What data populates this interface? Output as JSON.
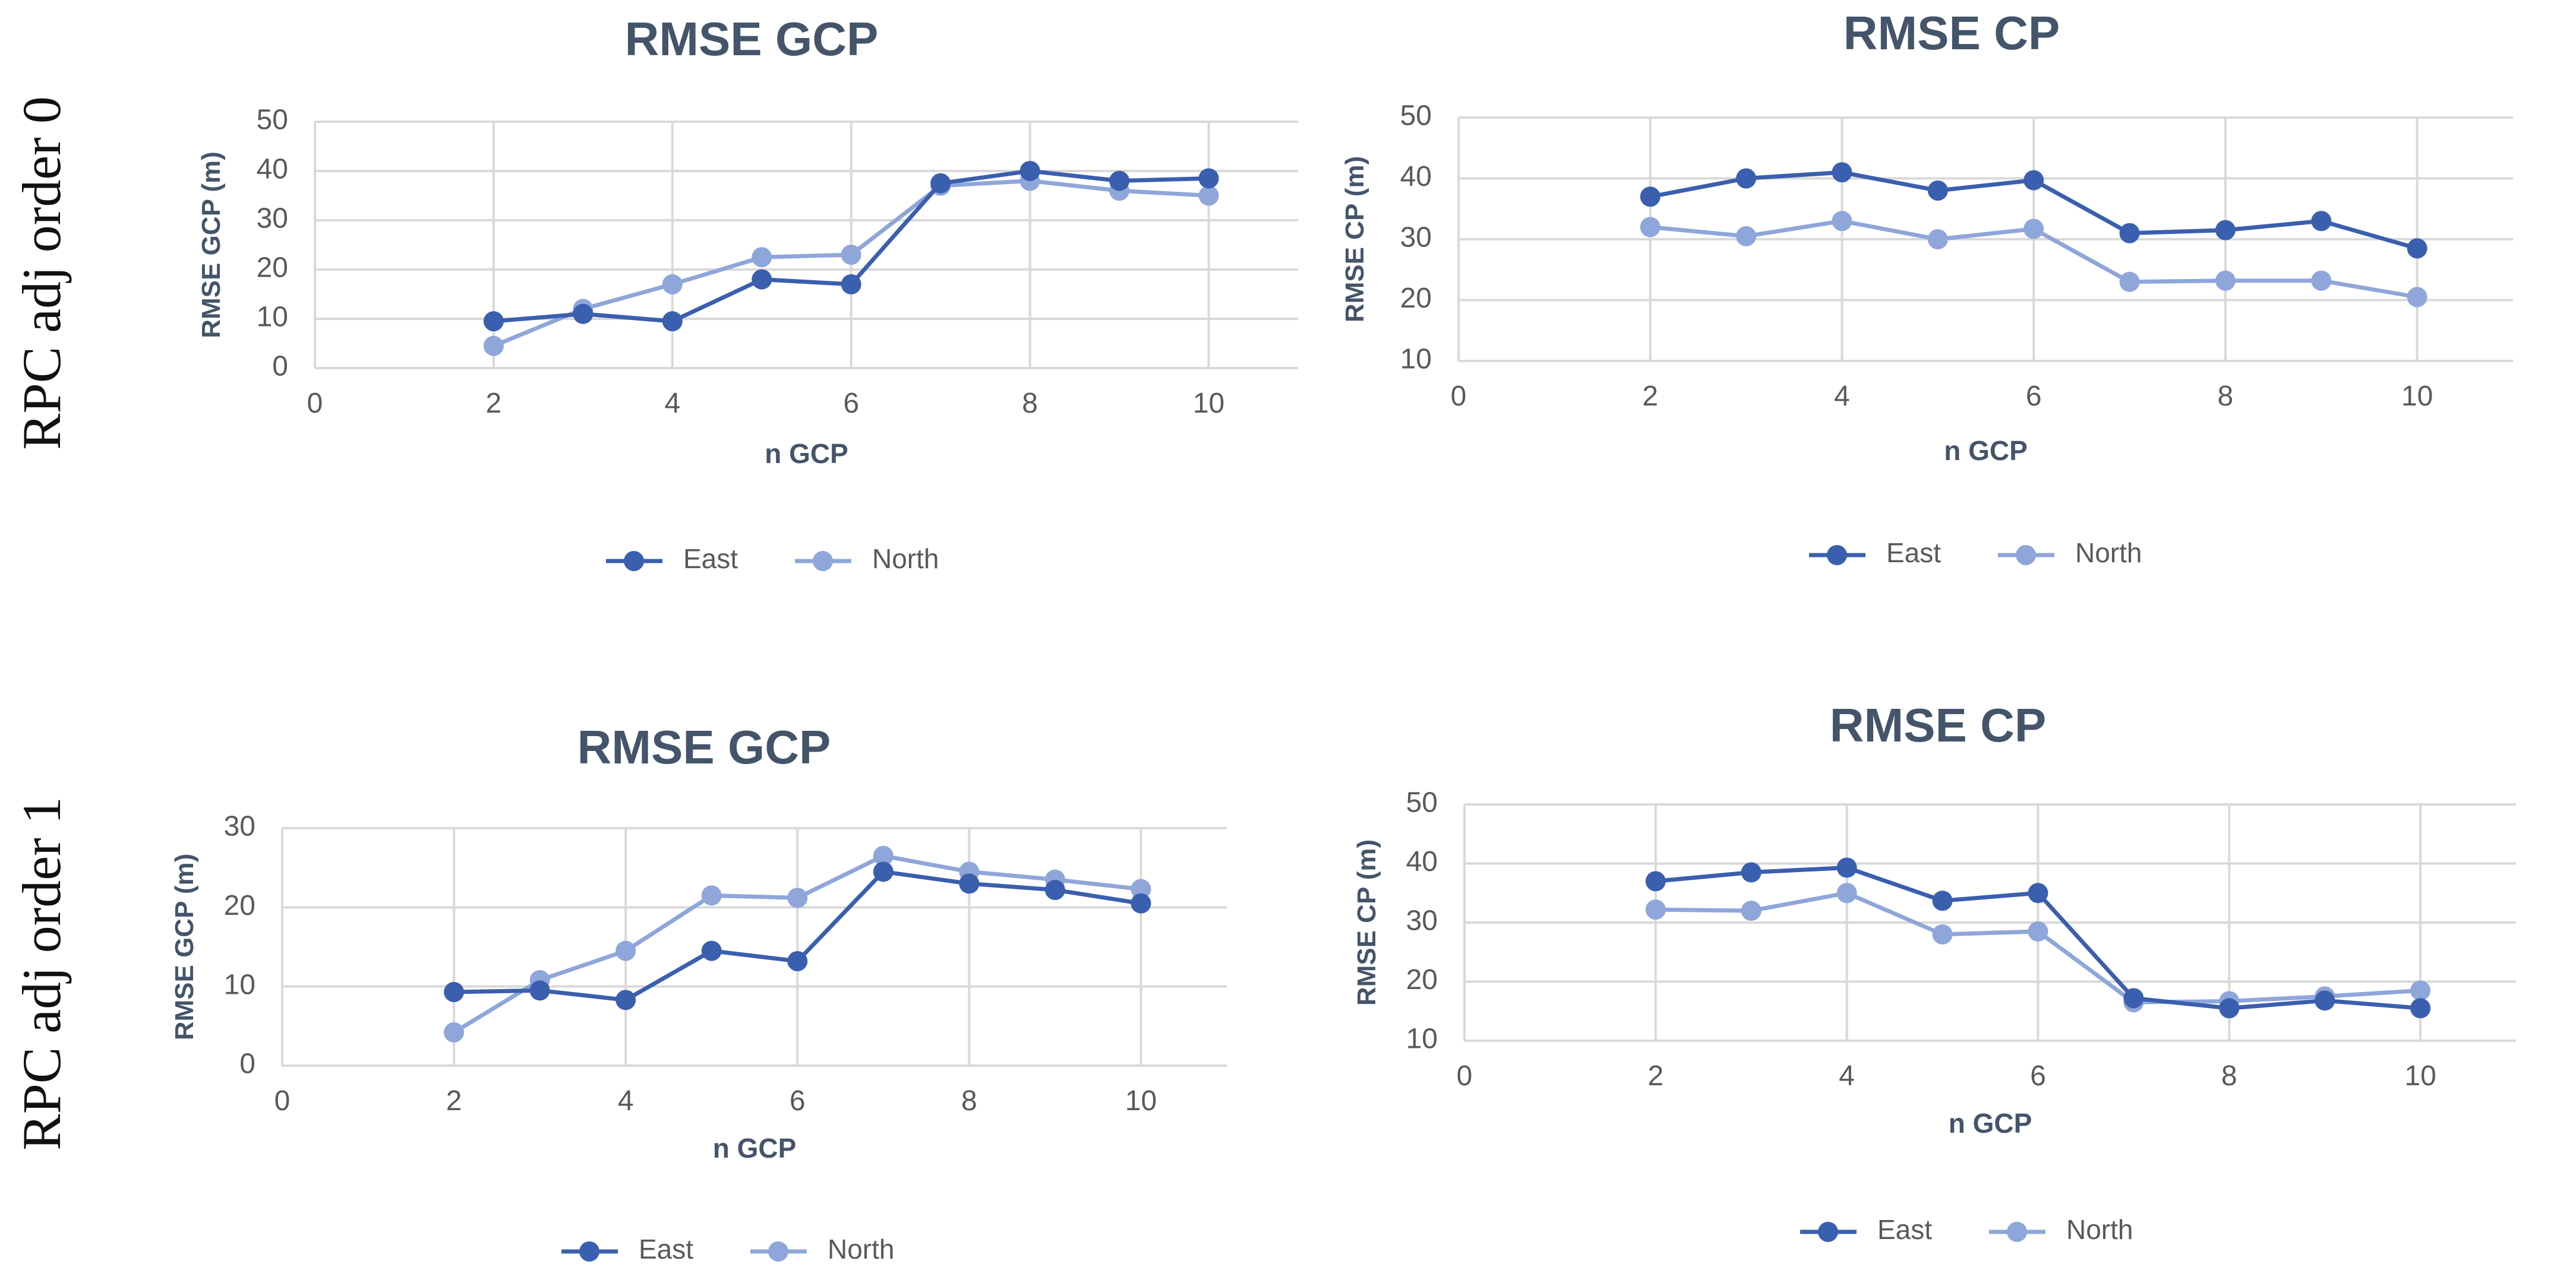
{
  "row_labels": [
    "RPC adj order 0",
    "RPC adj order 1"
  ],
  "colors": {
    "East": "#3a5fae",
    "North": "#8fa6da",
    "grid": "#d9d9d9",
    "text": "#595959",
    "title": "#44546a"
  },
  "chart_data": [
    {
      "type": "line",
      "title": "RMSE GCP",
      "xlabel": "n GCP",
      "ylabel": "RMSE GCP (m)",
      "xlim": [
        0,
        11
      ],
      "xticks": [
        0,
        2,
        4,
        6,
        8,
        10
      ],
      "ylim": [
        0,
        50
      ],
      "yticks": [
        0,
        10,
        20,
        30,
        40,
        50
      ],
      "grid": true,
      "legend": "bottom",
      "x": [
        2,
        3,
        4,
        5,
        6,
        7,
        8,
        9,
        10
      ],
      "series": [
        {
          "name": "East",
          "values": [
            9.5,
            11,
            9.5,
            18,
            17,
            37.5,
            40,
            38,
            38.5
          ]
        },
        {
          "name": "North",
          "values": [
            4.5,
            12,
            17,
            22.5,
            23,
            37,
            38,
            36,
            35
          ]
        }
      ]
    },
    {
      "type": "line",
      "title": "RMSE CP",
      "xlabel": "n GCP",
      "ylabel": "RMSE CP (m)",
      "xlim": [
        0,
        11
      ],
      "xticks": [
        0,
        2,
        4,
        6,
        8,
        10
      ],
      "ylim": [
        10,
        50
      ],
      "yticks": [
        10,
        20,
        30,
        40,
        50
      ],
      "grid": true,
      "legend": "bottom",
      "x": [
        2,
        3,
        4,
        5,
        6,
        7,
        8,
        9,
        10
      ],
      "series": [
        {
          "name": "East",
          "values": [
            37,
            40,
            41,
            38,
            39.7,
            31,
            31.5,
            33,
            28.5
          ]
        },
        {
          "name": "North",
          "values": [
            32,
            30.5,
            33,
            30,
            31.7,
            23,
            23.2,
            23.2,
            20.5
          ]
        }
      ]
    },
    {
      "type": "line",
      "title": "RMSE GCP",
      "xlabel": "n GCP",
      "ylabel": "RMSE GCP (m)",
      "xlim": [
        0,
        11
      ],
      "xticks": [
        0,
        2,
        4,
        6,
        8,
        10
      ],
      "ylim": [
        0,
        30
      ],
      "yticks": [
        0,
        10,
        20,
        30
      ],
      "grid": true,
      "legend": "bottom",
      "x": [
        2,
        3,
        4,
        5,
        6,
        7,
        8,
        9,
        10
      ],
      "series": [
        {
          "name": "East",
          "values": [
            9.3,
            9.5,
            8.3,
            14.5,
            13.2,
            24.5,
            23,
            22.2,
            20.5
          ]
        },
        {
          "name": "North",
          "values": [
            4.2,
            10.8,
            14.5,
            21.5,
            21.2,
            26.5,
            24.5,
            23.5,
            22.3
          ]
        }
      ]
    },
    {
      "type": "line",
      "title": "RMSE CP",
      "xlabel": "n GCP",
      "ylabel": "RMSE CP (m)",
      "xlim": [
        0,
        11
      ],
      "xticks": [
        0,
        2,
        4,
        6,
        8,
        10
      ],
      "ylim": [
        10,
        50
      ],
      "yticks": [
        10,
        20,
        30,
        40,
        50
      ],
      "grid": true,
      "legend": "bottom",
      "x": [
        2,
        3,
        4,
        5,
        6,
        7,
        8,
        9,
        10
      ],
      "series": [
        {
          "name": "East",
          "values": [
            37,
            38.5,
            39.3,
            33.7,
            35,
            17.2,
            15.5,
            16.8,
            15.5
          ]
        },
        {
          "name": "North",
          "values": [
            32.2,
            32,
            35,
            28,
            28.5,
            16.5,
            16.7,
            17.5,
            18.5
          ]
        }
      ]
    }
  ]
}
